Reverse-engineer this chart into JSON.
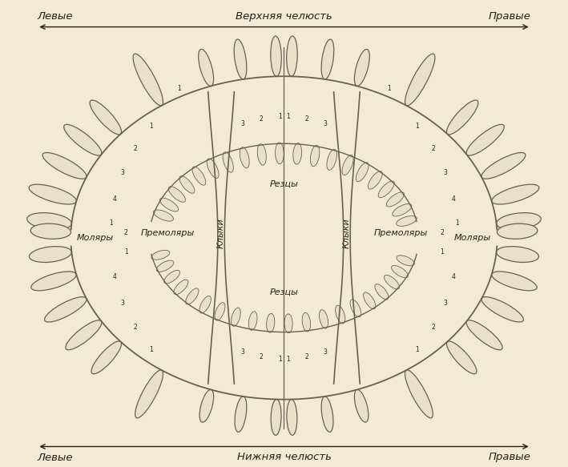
{
  "bg_color": "#f0ead6",
  "line_color": "#6a6050",
  "text_color": "#2a2015",
  "title_top": "Верхняя челюсть",
  "title_bottom": "Нижняя челюсть",
  "left_label_top": "Левые",
  "right_label_top": "Правые",
  "left_label_bottom": "Левые",
  "right_label_bottom": "Правые",
  "label_rezcy_top": "Резцы",
  "label_rezcy_bottom": "Резцы",
  "label_klyki_left": "Клыки",
  "label_klyki_right": "Клыки",
  "label_premolary_left": "Премоляры",
  "label_premolary_right": "Премоляры",
  "label_molary_left": "Моляры",
  "label_molary_right": "Моляры",
  "figsize": [
    7.09,
    5.83
  ],
  "dpi": 100
}
